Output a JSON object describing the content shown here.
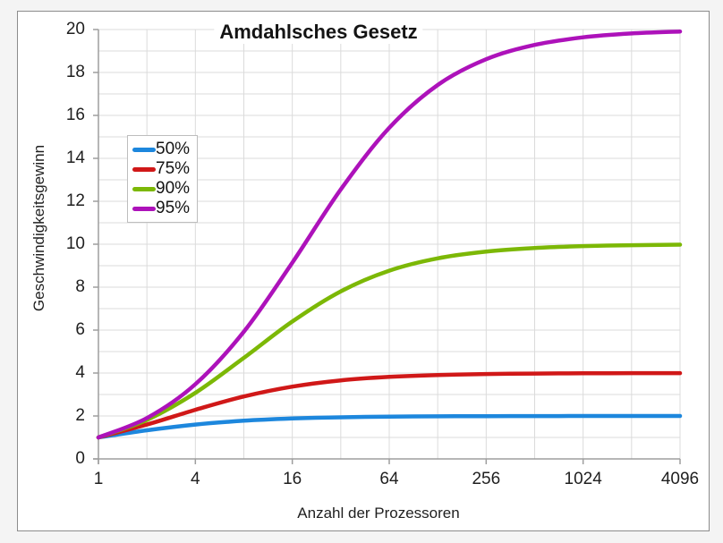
{
  "chart_data": {
    "type": "line",
    "title": "Amdahlsches Gesetz",
    "xlabel": "Anzahl der Prozessoren",
    "ylabel": "Geschwindigkeitsgewinn",
    "x_scale": "log2",
    "xlim": [
      1,
      4096
    ],
    "ylim": [
      0,
      20
    ],
    "x_ticks": [
      1,
      4,
      16,
      64,
      256,
      1024,
      4096
    ],
    "y_ticks": [
      0,
      2,
      4,
      6,
      8,
      10,
      12,
      14,
      16,
      18,
      20
    ],
    "grid": "on (minor gridlines every power of 2 on x, every 1 unit on y)",
    "legend_position": "upper-left-inside",
    "x": [
      1,
      2,
      4,
      8,
      16,
      32,
      64,
      128,
      256,
      512,
      1024,
      2048,
      4096
    ],
    "series": [
      {
        "name": "50%",
        "parallel_fraction": 0.5,
        "color": "#1d87dd",
        "values": [
          1.0,
          1.333,
          1.6,
          1.778,
          1.882,
          1.939,
          1.969,
          1.984,
          1.992,
          1.996,
          1.998,
          1.999,
          2.0
        ]
      },
      {
        "name": "75%",
        "parallel_fraction": 0.75,
        "color": "#d01818",
        "values": [
          1.0,
          1.6,
          2.286,
          2.909,
          3.368,
          3.657,
          3.821,
          3.908,
          3.954,
          3.977,
          3.988,
          3.994,
          3.997
        ]
      },
      {
        "name": "90%",
        "parallel_fraction": 0.9,
        "color": "#7cb806",
        "values": [
          1.0,
          1.818,
          3.077,
          4.706,
          6.4,
          7.805,
          8.767,
          9.343,
          9.66,
          9.827,
          9.913,
          9.956,
          9.978
        ]
      },
      {
        "name": "95%",
        "parallel_fraction": 0.95,
        "color": "#ad12ba",
        "values": [
          1.0,
          1.905,
          3.478,
          5.926,
          9.143,
          12.549,
          15.422,
          17.415,
          18.618,
          19.284,
          19.636,
          19.817,
          19.907
        ]
      }
    ],
    "colors": {
      "grid": "#dbdbdb",
      "axis": "#9e9e9e",
      "tick_text": "#1f1f1f",
      "title_text": "#141414",
      "chart_background": "#ffffff",
      "page_background": "#f4f4f4",
      "chart_border": "#8c8c8c",
      "legend_border": "#bdbdbd"
    }
  }
}
